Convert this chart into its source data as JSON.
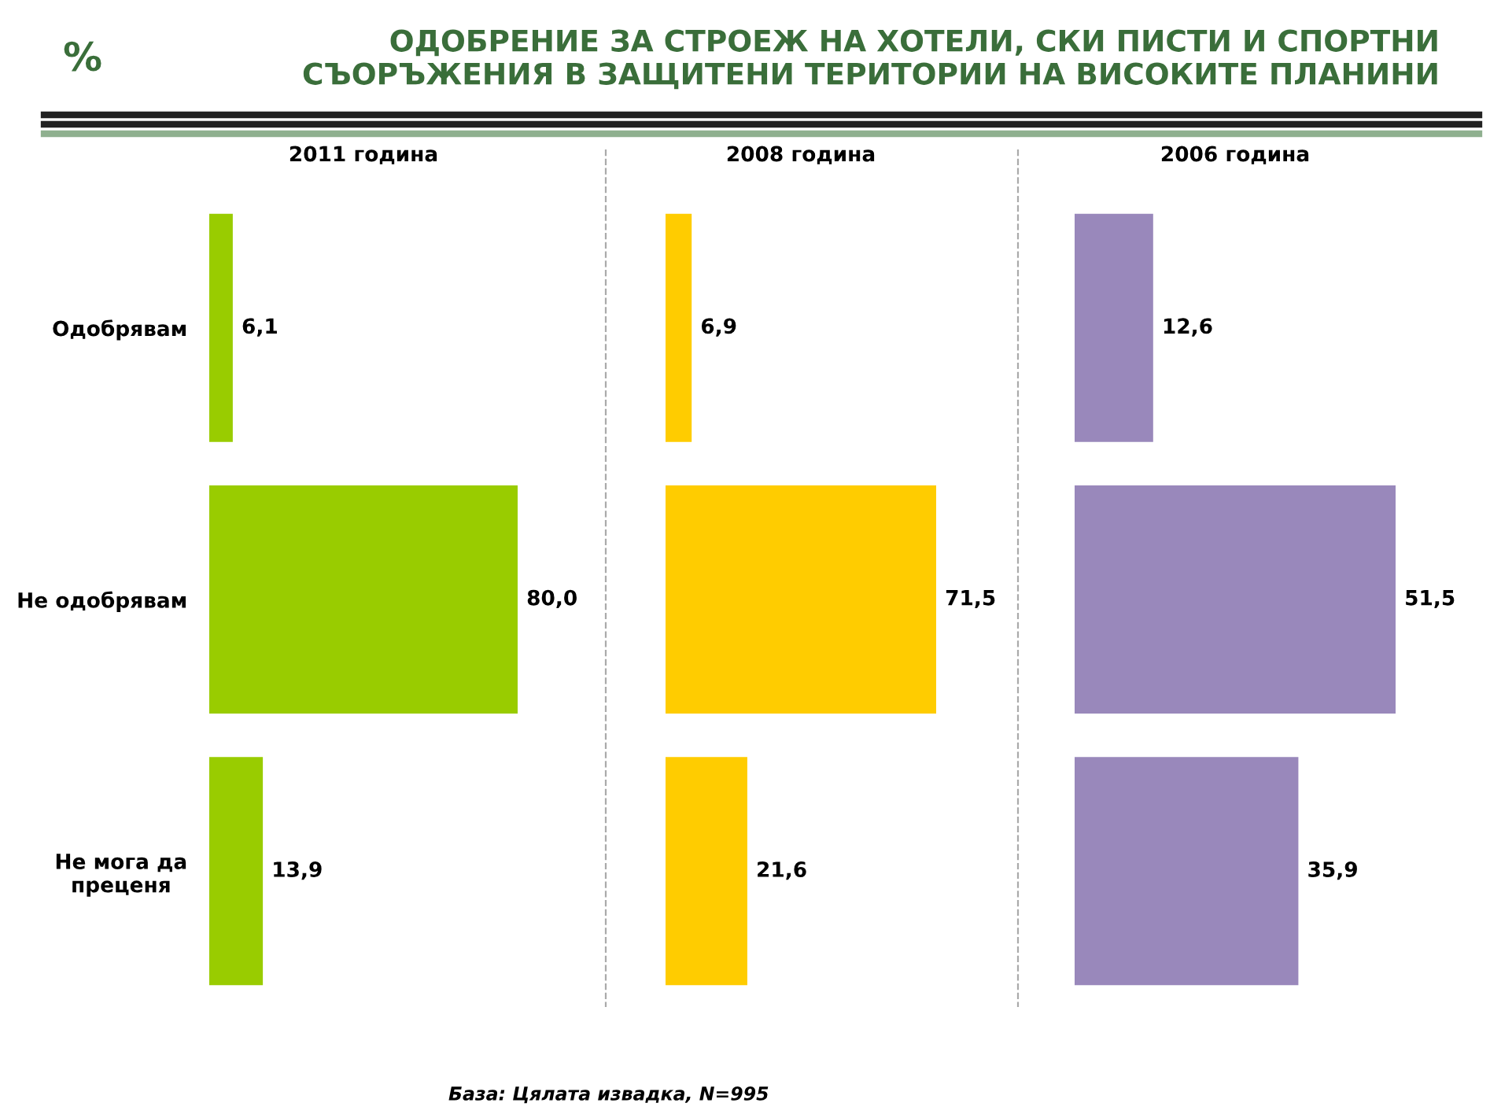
{
  "chart_data": [
    {
      "type": "bar",
      "orientation": "horizontal",
      "title": "2011 година",
      "categories": [
        "Одобрявам",
        "Не одобрявам",
        "Не мога да\nпреценя"
      ],
      "values": [
        6.1,
        80.0,
        13.9
      ],
      "value_labels": [
        "6,1",
        "80,0",
        "13,9"
      ],
      "color": "#99cc00",
      "tick_labels": "y",
      "annotations": [
        "%",
        "ОДОБРЕНИЕ ЗА СТРОЕЖ НА ХОТЕЛИ, СКИ ПИСТИ И СПОРТНИ\nСЪОРЪЖЕНИЯ В ЗАЩИТЕНИ ТЕРИТОРИИ НА ВИСОКИТЕ ПЛАНИНИ",
        "База: Цялата извадка, N=995"
      ]
    },
    {
      "type": "bar",
      "orientation": "horizontal",
      "title": "2008 година",
      "categories": [
        null,
        null,
        null
      ],
      "values": [
        6.9,
        71.5,
        21.6
      ],
      "value_labels": [
        "6,9",
        "71,5",
        "21,6"
      ],
      "color": "#ffcc00",
      "tick_labels": false
    },
    {
      "type": "bar",
      "orientation": "horizontal",
      "title": "2006 година",
      "categories": [
        null,
        null,
        null
      ],
      "values": [
        12.6,
        51.5,
        35.9
      ],
      "value_labels": [
        "12,6",
        "51,5",
        "35,9"
      ],
      "color": "#9988bb",
      "tick_labels": false
    }
  ]
}
